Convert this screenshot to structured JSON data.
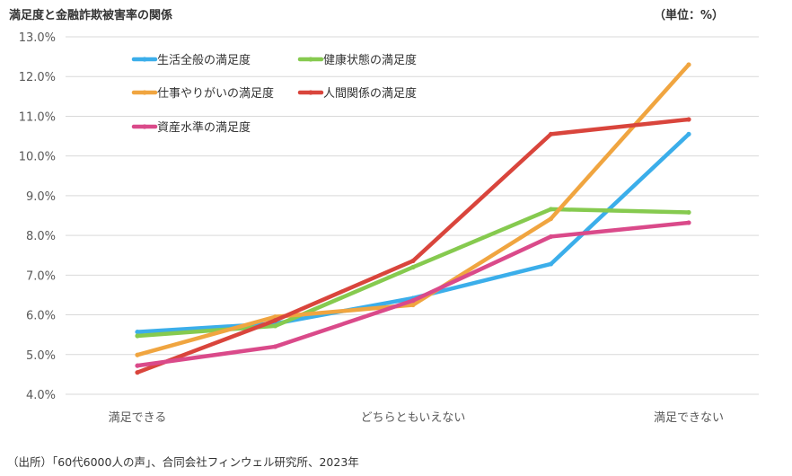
{
  "header": {
    "title": "満足度と金融詐欺被害率の関係",
    "unit": "（単位：%）"
  },
  "footer": {
    "source": "（出所）「60代6000人の声」、合同会社フィンウェル研究所、2023年"
  },
  "chart_data": {
    "type": "line",
    "title": "満足度と金融詐欺被害率の関係",
    "xlabel": "",
    "ylabel": "",
    "x": [
      "満足できる",
      "",
      "どちらともいえない",
      "",
      "満足できない"
    ],
    "ylim": [
      4.0,
      13.0
    ],
    "yticks": [
      "4.0%",
      "5.0%",
      "6.0%",
      "7.0%",
      "8.0%",
      "9.0%",
      "10.0%",
      "11.0%",
      "12.0%",
      "13.0%"
    ],
    "grid": true,
    "legend_position": "top-left",
    "series": [
      {
        "name": "生活全般の満足度",
        "color": "#3BAEEA",
        "values": [
          5.57,
          5.78,
          6.42,
          7.28,
          10.55
        ]
      },
      {
        "name": "健康状態の満足度",
        "color": "#86CA4F",
        "values": [
          5.47,
          5.72,
          7.2,
          8.66,
          8.58
        ]
      },
      {
        "name": "仕事やりがいの満足度",
        "color": "#F0A540",
        "values": [
          4.99,
          5.95,
          6.25,
          8.42,
          12.3
        ]
      },
      {
        "name": "人間関係の満足度",
        "color": "#D9453C",
        "values": [
          4.55,
          5.86,
          7.36,
          10.55,
          10.92
        ]
      },
      {
        "name": "資産水準の満足度",
        "color": "#DA4A8A",
        "values": [
          4.72,
          5.2,
          6.36,
          7.97,
          8.32
        ]
      }
    ]
  }
}
